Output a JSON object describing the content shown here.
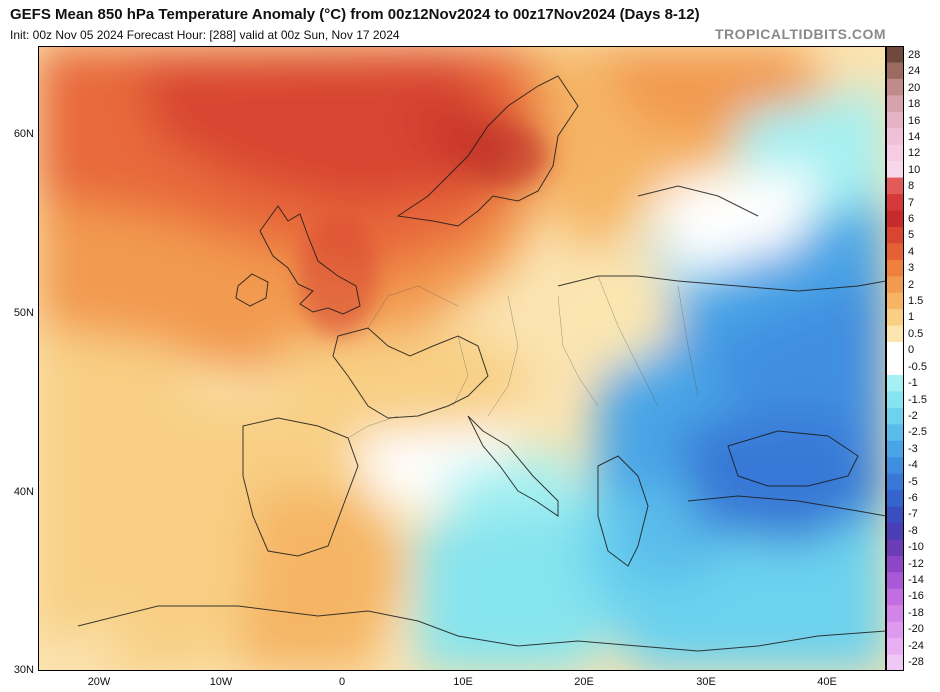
{
  "header": {
    "title": "GEFS Mean 850 hPa Temperature Anomaly (°C) from 00z12Nov2024 to 00z17Nov2024 (Days 8-12)",
    "subtitle": "Init: 00z Nov 05 2024   Forecast Hour: [288]   valid at 00z Sun, Nov 17 2024",
    "credit": "TROPICALTIDBITS.COM"
  },
  "axes": {
    "lat_labels": [
      "60N",
      "50N",
      "40N",
      "30N"
    ],
    "lon_labels": [
      "20W",
      "10W",
      "0",
      "10E",
      "20E",
      "30E",
      "40E"
    ]
  },
  "colorbar": {
    "labels": [
      "28",
      "24",
      "20",
      "18",
      "16",
      "14",
      "12",
      "10",
      "8",
      "7",
      "6",
      "5",
      "4",
      "3",
      "2",
      "1.5",
      "1",
      "0.5",
      "0",
      "-0.5",
      "-1",
      "-1.5",
      "-2",
      "-2.5",
      "-3",
      "-4",
      "-5",
      "-6",
      "-7",
      "-8",
      "-10",
      "-12",
      "-14",
      "-16",
      "-18",
      "-20",
      "-24",
      "-28"
    ],
    "colors": [
      "#6e4a3c",
      "#9a6b5e",
      "#c08c8a",
      "#d5a2ad",
      "#e4b4c6",
      "#f0c0d8",
      "#f5cce4",
      "#f7d8ea",
      "#e35a5a",
      "#d6393a",
      "#c62a2a",
      "#d84530",
      "#e66035",
      "#ee7f3f",
      "#f29a4f",
      "#f5b565",
      "#f8cf84",
      "#fbe6b0",
      "#ffffff",
      "#ffffff",
      "#a4f0f2",
      "#86e4ee",
      "#6cd2ee",
      "#5abcea",
      "#4aa4e6",
      "#3f8ee0",
      "#3978d6",
      "#3464cc",
      "#3a4ec0",
      "#4a3eb4",
      "#6a3cb6",
      "#8c46c6",
      "#a85ad6",
      "#c06ee0",
      "#d284e8",
      "#de9aee",
      "#e8b0f2",
      "#f0c8f6"
    ]
  },
  "regions": {
    "warm_anomaly": "Western and Northern Europe, North Atlantic",
    "cold_anomaly": "Eastern Europe, Balkans, Black Sea, Eastern Mediterranean"
  }
}
